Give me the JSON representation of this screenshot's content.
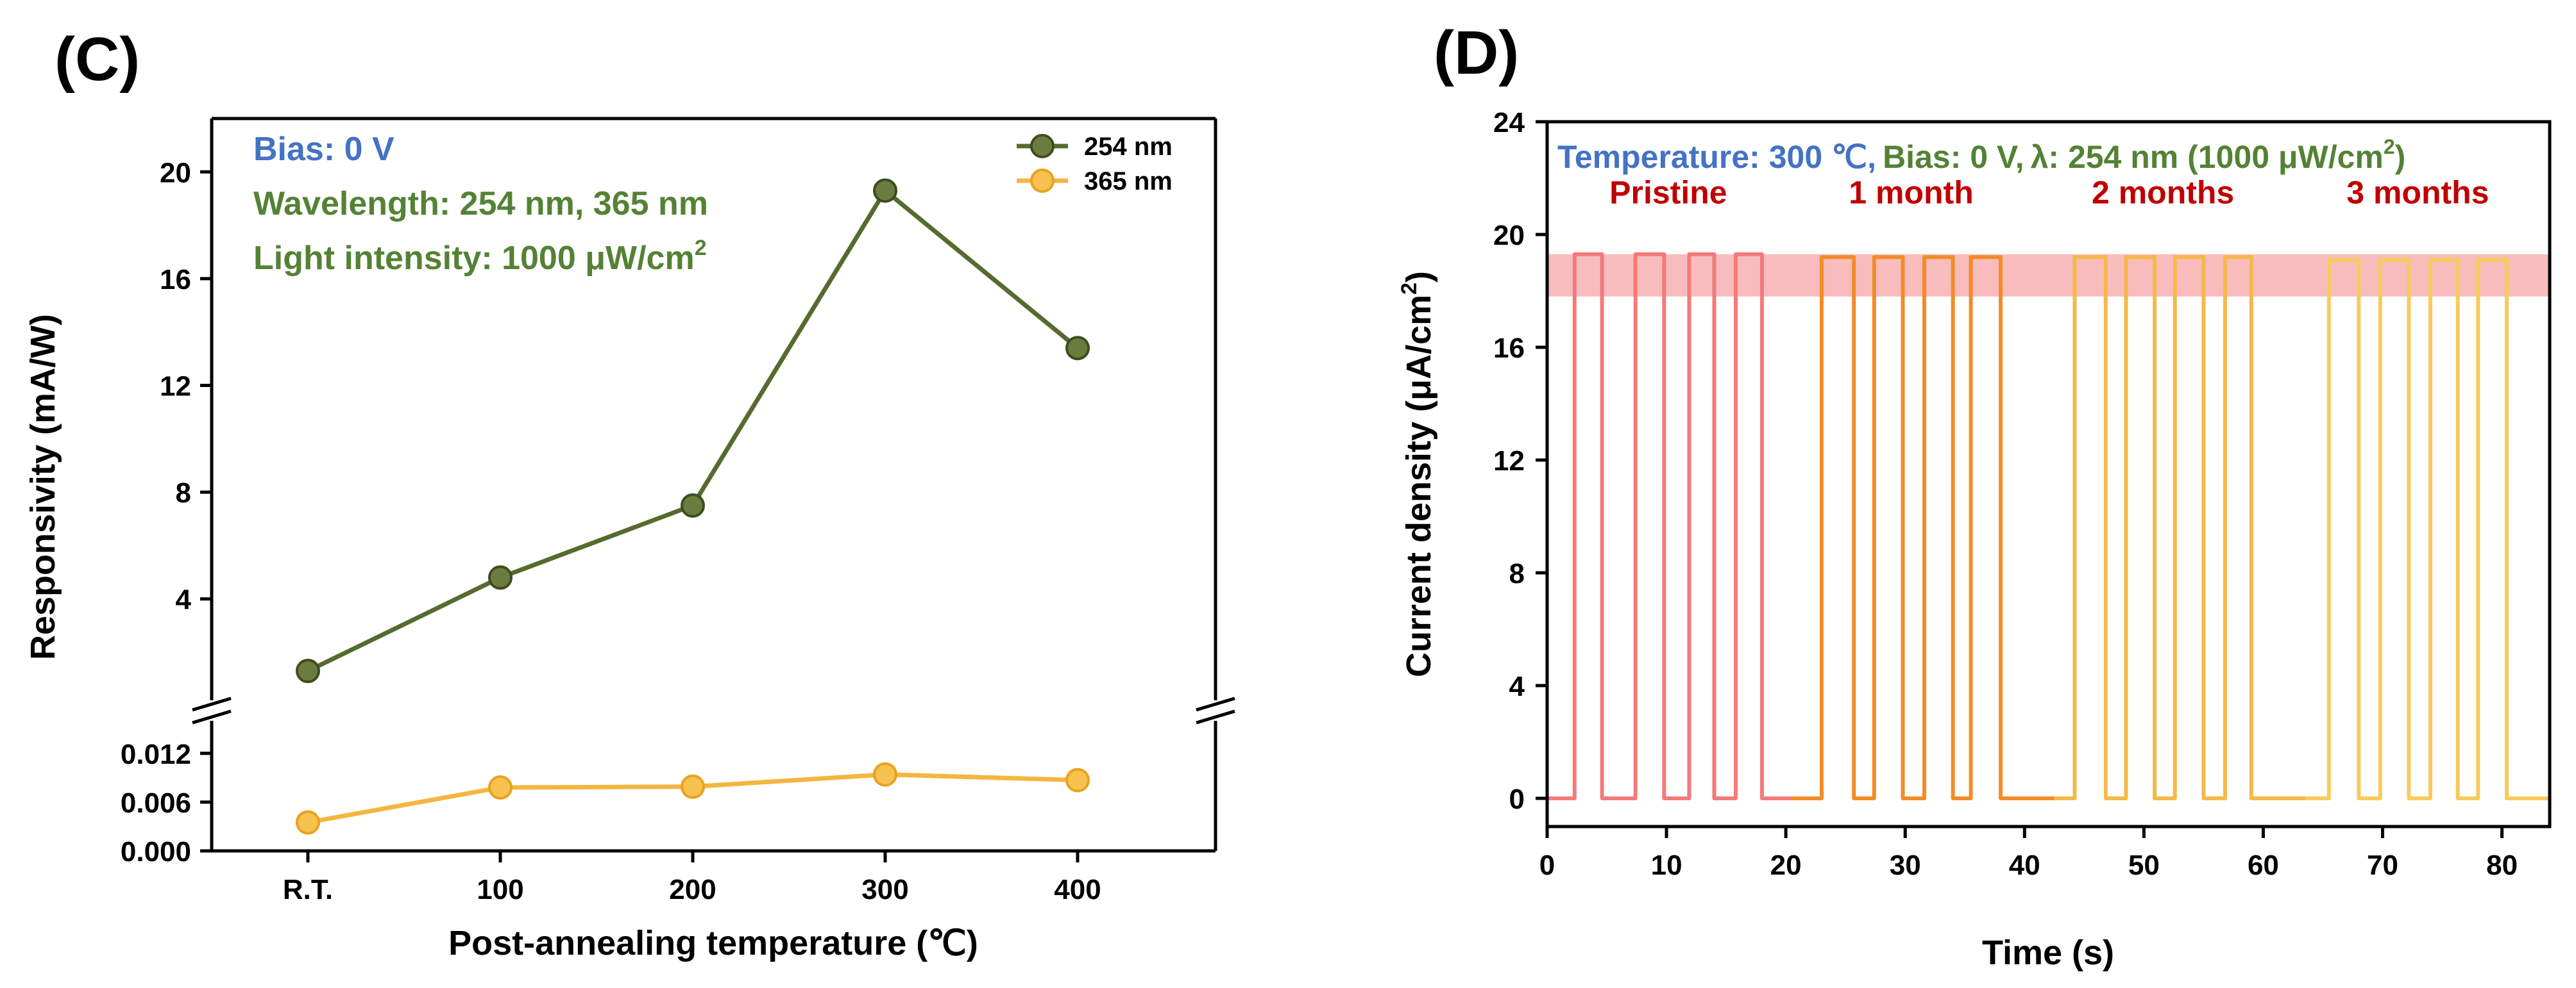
{
  "chart_data": [
    {
      "panel_label": "(C)",
      "type": "line",
      "xlabel": "Post-annealing temperature (℃)",
      "ylabel": "Responsivity (mA/W)",
      "categories": [
        "R.T.",
        "100",
        "200",
        "300",
        "400"
      ],
      "upper_axis": {
        "ylim": [
          0.2,
          22
        ],
        "ticks": [
          4,
          8,
          12,
          16,
          20
        ]
      },
      "lower_axis": {
        "ylim": [
          0,
          0.016
        ],
        "ticks": [
          0.0,
          0.006,
          0.012
        ],
        "tick_labels": [
          "0.000",
          "0.006",
          "0.012"
        ]
      },
      "series": [
        {
          "name": "254 nm",
          "values": [
            1.3,
            4.8,
            7.5,
            19.3,
            13.4
          ],
          "color": "#556b2f",
          "axis": "upper"
        },
        {
          "name": "365 nm",
          "values": [
            0.0035,
            0.0078,
            0.0079,
            0.0094,
            0.0087
          ],
          "color": "#f4b63f",
          "axis": "lower"
        }
      ],
      "annotations": {
        "bias": "Bias: 0 V",
        "wavelength": "Wavelength: 254 nm, 365 nm",
        "intensity": "Light intensity: 1000 μW/cm",
        "intensity_sup": "2"
      },
      "colors": {
        "annotation_blue": "#4472c4",
        "annotation_green": "#548235"
      }
    },
    {
      "panel_label": "(D)",
      "type": "line",
      "xlabel": "Time (s)",
      "ylabel": "Current density (μA/cm",
      "ylabel_sup": "2",
      "ylabel_end": ")",
      "xlim": [
        0,
        84
      ],
      "ylim": [
        -1,
        24
      ],
      "xticks": [
        0,
        10,
        20,
        30,
        40,
        50,
        60,
        70,
        80
      ],
      "yticks": [
        0,
        4,
        8,
        12,
        16,
        20,
        24
      ],
      "title_parts": {
        "temperature": "Temperature: 300 ℃,",
        "bias": "Bias: 0 V,",
        "lambda": "λ: 254 nm (1000 μW/cm",
        "lambda_sup": "2",
        "lambda_end": ")"
      },
      "highlight_band": [
        17.8,
        19.3
      ],
      "highlight_color": "#f7a6a6",
      "segments": [
        {
          "name": "Pristine",
          "color": "#f47a7a",
          "x_range": [
            0,
            20.5
          ],
          "on_level": 19.3,
          "on_intervals": [
            [
              2.3,
              4.6
            ],
            [
              7.4,
              9.8
            ],
            [
              11.9,
              14.0
            ],
            [
              15.8,
              18.0
            ]
          ]
        },
        {
          "name": "1 month",
          "color": "#f28c28",
          "x_range": [
            20.5,
            42.5
          ],
          "on_level": 19.2,
          "on_intervals": [
            [
              23.0,
              25.7
            ],
            [
              27.4,
              29.8
            ],
            [
              31.6,
              34.0
            ],
            [
              35.5,
              38.0
            ]
          ]
        },
        {
          "name": "2 months",
          "color": "#f5b94a",
          "x_range": [
            42.5,
            63.5
          ],
          "on_level": 19.2,
          "on_intervals": [
            [
              44.2,
              46.8
            ],
            [
              48.5,
              50.9
            ],
            [
              52.6,
              55.0
            ],
            [
              56.8,
              59.0
            ]
          ]
        },
        {
          "name": "3 months",
          "color": "#f7cb5c",
          "x_range": [
            63.5,
            84
          ],
          "on_level": 19.1,
          "on_intervals": [
            [
              65.5,
              68.0
            ],
            [
              69.8,
              72.2
            ],
            [
              74.0,
              76.3
            ],
            [
              78.0,
              80.4
            ]
          ]
        }
      ],
      "colors": {
        "annotation_blue": "#4472c4",
        "annotation_green": "#548235",
        "segment_label": "#c00000"
      }
    }
  ]
}
